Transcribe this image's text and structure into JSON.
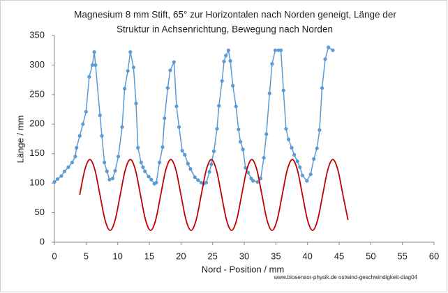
{
  "chart_data": {
    "type": "scatter-line",
    "title": [
      "Magnesium 8 mm Stift, 65° zur Horizontalen nach Norden geneigt, Länge der",
      "Struktur in Achsenrichtung,  Bewegung nach Norden"
    ],
    "x_label": "Nord - Position / mm",
    "y_label": "Länge / mm",
    "annotation": "www.biosensor-physik.de  ostwind-geschwindigkeit-diag04",
    "xlim": [
      0,
      60
    ],
    "xticks": [
      0,
      5,
      10,
      15,
      20,
      25,
      30,
      35,
      40,
      45,
      50,
      55,
      60
    ],
    "ylim": [
      0,
      350
    ],
    "yticks": [
      0,
      50,
      100,
      150,
      200,
      250,
      300,
      350
    ],
    "grid": false,
    "series": [
      {
        "color": "#5b9bd5",
        "markers": true,
        "smooth": false,
        "x": [
          0,
          0.5,
          1.1,
          1.6,
          2.2,
          2.8,
          3.3,
          3.5,
          4.0,
          4.5,
          5.0,
          5.5,
          6.0,
          6.3,
          6.5,
          7.2,
          7.5,
          7.9,
          8.3,
          8.7,
          9.2,
          9.6,
          10.1,
          10.7,
          11.1,
          11.6,
          12.0,
          12.5,
          12.9,
          13.2,
          13.7,
          14.0,
          14.3,
          14.9,
          15.3,
          15.8,
          16.1,
          16.6,
          17.1,
          17.4,
          17.9,
          18.3,
          18.9,
          19.3,
          19.7,
          20.2,
          20.6,
          21.1,
          21.5,
          22.2,
          22.7,
          23.2,
          23.6,
          24.0,
          24.5,
          24.8,
          25.2,
          25.7,
          26.0,
          26.5,
          26.8,
          27.1,
          27.5,
          27.8,
          28.2,
          28.7,
          29.1,
          29.4,
          29.8,
          30.2,
          30.6,
          31.1,
          31.4,
          32.1,
          32.6,
          33.1,
          33.5,
          34.0,
          34.4,
          34.9,
          35.4,
          35.8,
          36.2,
          36.6,
          37.0,
          37.5,
          37.9,
          38.4,
          38.8,
          39.2,
          39.9,
          40.5,
          41.0,
          41.5,
          41.9,
          42.3,
          42.8,
          43.3,
          44.0
        ],
        "values": [
          102,
          107,
          112,
          120,
          127,
          135,
          145,
          160,
          180,
          200,
          221,
          280,
          300,
          322,
          300,
          215,
          180,
          135,
          120,
          106,
          108,
          121,
          145,
          195,
          260,
          290,
          322,
          296,
          235,
          160,
          135,
          127,
          120,
          111,
          106,
          99,
          101,
          135,
          161,
          210,
          261,
          291,
          305,
          230,
          195,
          155,
          148,
          133,
          124,
          110,
          105,
          101,
          99,
          101,
          119,
          132,
          154,
          192,
          231,
          273,
          306,
          316,
          325,
          307,
          265,
          230,
          191,
          170,
          157,
          126,
          118,
          108,
          104,
          102,
          108,
          143,
          183,
          252,
          302,
          325,
          325,
          325,
          257,
          192,
          174,
          160,
          148,
          137,
          127,
          113,
          104,
          115,
          141,
          159,
          190,
          261,
          310,
          330,
          325
        ]
      },
      {
        "color": "#c00000",
        "markers": false,
        "smooth": true,
        "x": [
          4.0,
          4.8,
          5.6,
          6.4,
          7.2,
          8.0,
          8.8,
          9.6,
          10.4,
          11.2,
          12.0,
          12.8,
          13.6,
          14.4,
          15.2,
          16.0,
          16.8,
          17.6,
          18.4,
          19.2,
          20.0,
          20.8,
          21.6,
          22.4,
          23.2,
          24.0,
          24.8,
          25.6,
          26.4,
          27.2,
          28.0,
          28.8,
          29.6,
          30.4,
          31.2,
          32.0,
          32.8,
          33.6,
          34.4,
          35.2,
          36.0,
          36.8,
          37.6,
          38.4,
          39.2,
          40.0,
          40.8,
          41.6,
          42.4,
          43.2,
          44.0,
          44.8,
          45.6,
          46.4
        ],
        "values": [
          80,
          122.4,
          140,
          122.4,
          80,
          37.6,
          20,
          37.6,
          80,
          122.4,
          140,
          122.4,
          80,
          37.6,
          20,
          37.6,
          80,
          122.4,
          140,
          122.4,
          80,
          37.6,
          20,
          37.6,
          80,
          122.4,
          140,
          122.4,
          80,
          37.6,
          20,
          37.6,
          80,
          122.4,
          140,
          122.4,
          80,
          37.6,
          20,
          37.6,
          80,
          122.4,
          140,
          122.4,
          80,
          37.6,
          20,
          37.6,
          80,
          122.4,
          140,
          122.4,
          80,
          37.6
        ]
      }
    ]
  }
}
